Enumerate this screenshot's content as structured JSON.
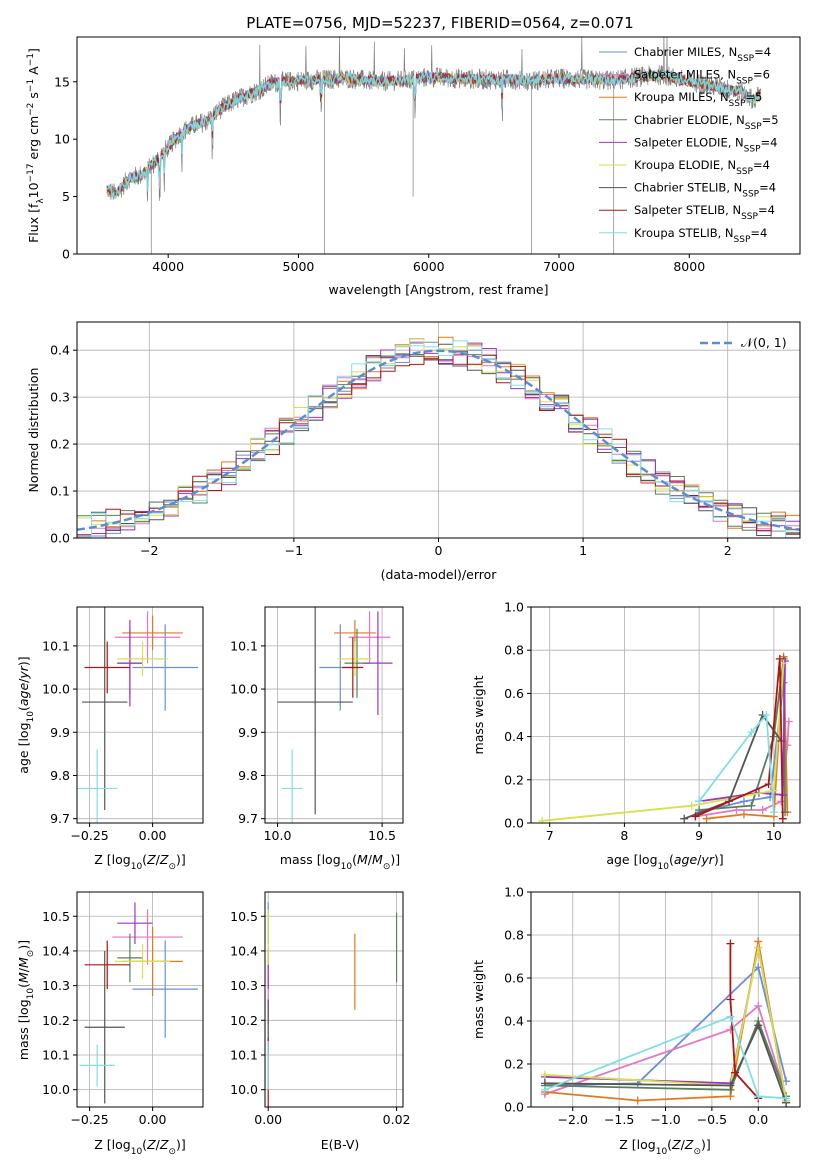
{
  "figure_title": "PLATE=0756, MJD=52237, FIBERID=0564, z=0.071",
  "palette": [
    "#6a8fd6",
    "#e377c2",
    "#e07b1d",
    "#5b7f5b",
    "#9e32c9",
    "#d8e04b",
    "#555555",
    "#b01515",
    "#80dfe3"
  ],
  "legend_spectrum": [
    {
      "base": "Chabrier MILES, N",
      "sub": "SSP",
      "tail": "=4",
      "color": "#6a8fd6"
    },
    {
      "base": "Salpeter MILES, N",
      "sub": "SSP",
      "tail": "=6",
      "color": "#e377c2"
    },
    {
      "base": "Kroupa MILES, N",
      "sub": "SSP",
      "tail": "=5",
      "color": "#e07b1d"
    },
    {
      "base": "Chabrier ELODIE, N",
      "sub": "SSP",
      "tail": "=5",
      "color": "#5b7f5b"
    },
    {
      "base": "Salpeter ELODIE, N",
      "sub": "SSP",
      "tail": "=4",
      "color": "#9e32c9"
    },
    {
      "base": "Kroupa ELODIE, N",
      "sub": "SSP",
      "tail": "=4",
      "color": "#d8e04b"
    },
    {
      "base": "Chabrier STELIB, N",
      "sub": "SSP",
      "tail": "=4",
      "color": "#555555"
    },
    {
      "base": "Salpeter STELIB, N",
      "sub": "SSP",
      "tail": "=4",
      "color": "#b01515"
    },
    {
      "base": "Kroupa STELIB, N",
      "sub": "SSP",
      "tail": "=4",
      "color": "#80dfe3"
    }
  ],
  "chart_data": [
    {
      "type": "line",
      "name": "spectrum",
      "xlabel": "wavelength [Angstrom, rest frame]",
      "ylabel": "Flux [f",
      "ylabel_parts": [
        "Flux [f",
        "λ",
        "10",
        "−17",
        " erg cm",
        "−2",
        " s",
        "−1",
        " A",
        "−1",
        "]"
      ],
      "xlim": [
        3300,
        8850
      ],
      "ylim": [
        0,
        18.9
      ],
      "xticks": [
        4000,
        5000,
        6000,
        7000,
        8000
      ],
      "yticks": [
        0,
        5,
        10,
        15
      ],
      "grid": false,
      "legend": "right",
      "envelope": {
        "x": [
          3530,
          3600,
          3700,
          3800,
          3900,
          4000,
          4100,
          4200,
          4300,
          4400,
          4500,
          4600,
          4700,
          4800,
          4900,
          5000,
          5200,
          5400,
          5600,
          5800,
          6000,
          6200,
          6400,
          6600,
          6800,
          7000,
          7200,
          7400,
          7600,
          7800,
          8000,
          8200,
          8400,
          8500,
          8550
        ],
        "y": [
          5.6,
          5.2,
          6.6,
          6.9,
          8.0,
          9.3,
          10.6,
          11.2,
          11.6,
          12.6,
          13.3,
          13.8,
          14.3,
          14.9,
          15.0,
          15.1,
          15.2,
          15.3,
          15.0,
          15.1,
          15.4,
          15.3,
          15.2,
          15.2,
          15.1,
          15.3,
          15.2,
          15.1,
          15.4,
          15.6,
          15.0,
          14.6,
          14.1,
          13.4,
          14.0
        ]
      },
      "absorption_lines": [
        3840,
        3935,
        3970,
        4105,
        4340,
        4861,
        5175,
        5895,
        6563
      ]
    },
    {
      "type": "bar",
      "name": "residual-histogram",
      "xlabel": "(data-model)/error",
      "ylabel": "Normed distribution",
      "xlim": [
        -2.5,
        2.5
      ],
      "ylim": [
        0,
        0.46
      ],
      "xticks": [
        -2,
        -1,
        0,
        1,
        2
      ],
      "yticks": [
        0.0,
        0.1,
        0.2,
        0.3,
        0.4
      ],
      "grid": true,
      "legend": "top-right",
      "legend_label": "N(0, 1)",
      "bin_width": 0.1,
      "reference_curve": "standard normal N(0,1)"
    },
    {
      "type": "scatter",
      "name": "age-vs-metallicity",
      "xlabel": "Z [log10(Z/Z⊙)]",
      "ylabel": "age [log10(age/yr)]",
      "xlim": [
        -0.3,
        0.2
      ],
      "ylim": [
        9.69,
        10.19
      ],
      "xticks": [
        -0.25,
        0.0
      ],
      "yticks": [
        9.7,
        9.8,
        9.9,
        10.0,
        10.1
      ],
      "grid": true,
      "points": [
        {
          "x": 0.05,
          "y": 10.05,
          "xerr": 0.13,
          "yerr": 0.1
        },
        {
          "x": -0.02,
          "y": 10.12,
          "xerr": 0.13,
          "yerr": 0.06
        },
        {
          "x": 0.0,
          "y": 10.13,
          "xerr": 0.12,
          "yerr": 0.04
        },
        {
          "x": -0.09,
          "y": 10.06,
          "xerr": 0.05,
          "yerr": 0.08
        },
        {
          "x": -0.09,
          "y": 10.06,
          "xerr": 0.05,
          "yerr": 0.1
        },
        {
          "x": -0.04,
          "y": 10.07,
          "xerr": 0.1,
          "yerr": 0.04
        },
        {
          "x": -0.19,
          "y": 9.97,
          "xerr": 0.09,
          "yerr": 0.25
        },
        {
          "x": -0.18,
          "y": 10.05,
          "xerr": 0.09,
          "yerr": 0.06
        },
        {
          "x": -0.22,
          "y": 9.77,
          "xerr": 0.08,
          "yerr": 0.09
        }
      ]
    },
    {
      "type": "scatter",
      "name": "age-vs-mass",
      "xlabel": "mass [log10(M/M⊙)]",
      "ylabel": "",
      "xlim": [
        9.94,
        10.6
      ],
      "ylim": [
        9.69,
        10.19
      ],
      "xticks": [
        10.0,
        10.5
      ],
      "yticks": [
        9.7,
        9.8,
        9.9,
        10.0,
        10.1
      ],
      "grid": true,
      "points": [
        {
          "x": 10.3,
          "y": 10.05,
          "xerr": 0.1,
          "yerr": 0.1
        },
        {
          "x": 10.44,
          "y": 10.12,
          "xerr": 0.1,
          "yerr": 0.06
        },
        {
          "x": 10.37,
          "y": 10.13,
          "xerr": 0.1,
          "yerr": 0.03
        },
        {
          "x": 10.38,
          "y": 10.06,
          "xerr": 0.06,
          "yerr": 0.08
        },
        {
          "x": 10.48,
          "y": 10.06,
          "xerr": 0.07,
          "yerr": 0.12
        },
        {
          "x": 10.37,
          "y": 10.07,
          "xerr": 0.08,
          "yerr": 0.04
        },
        {
          "x": 10.18,
          "y": 9.97,
          "xerr": 0.18,
          "yerr": 0.26
        },
        {
          "x": 10.36,
          "y": 10.05,
          "xerr": 0.05,
          "yerr": 0.07
        },
        {
          "x": 10.07,
          "y": 9.77,
          "xerr": 0.05,
          "yerr": 0.09
        }
      ]
    },
    {
      "type": "line",
      "name": "mass-weight-vs-age",
      "xlabel": "age [log10(age/yr)]",
      "ylabel": "mass weight",
      "xlim": [
        6.75,
        10.35
      ],
      "ylim": [
        0,
        1
      ],
      "xticks": [
        7,
        8,
        9,
        10
      ],
      "yticks": [
        0.0,
        0.2,
        0.4,
        0.6,
        0.8,
        1.0
      ],
      "grid": true,
      "series": [
        {
          "x": [
            9.0,
            9.6,
            9.95,
            10.13
          ],
          "y": [
            0.05,
            0.1,
            0.12,
            0.65
          ]
        },
        {
          "x": [
            8.95,
            9.5,
            9.85,
            10.1,
            10.18,
            10.2
          ],
          "y": [
            0.03,
            0.06,
            0.06,
            0.1,
            0.36,
            0.47
          ]
        },
        {
          "x": [
            9.1,
            9.6,
            10.0,
            10.13,
            10.18
          ],
          "y": [
            0.02,
            0.04,
            0.03,
            0.77,
            0.05
          ]
        },
        {
          "x": [
            9.0,
            9.7,
            10.0,
            10.13,
            10.15
          ],
          "y": [
            0.06,
            0.08,
            0.4,
            0.76,
            0.05
          ]
        },
        {
          "x": [
            9.0,
            9.8,
            10.12,
            10.15
          ],
          "y": [
            0.1,
            0.14,
            0.13,
            0.75
          ]
        },
        {
          "x": [
            6.9,
            8.9,
            10.0,
            10.13
          ],
          "y": [
            0.01,
            0.08,
            0.15,
            0.74
          ]
        },
        {
          "x": [
            8.8,
            9.4,
            9.85,
            10.1
          ],
          "y": [
            0.02,
            0.1,
            0.5,
            0.38
          ]
        },
        {
          "x": [
            8.95,
            9.93,
            10.08,
            10.12
          ],
          "y": [
            0.03,
            0.18,
            0.76,
            0.02
          ]
        },
        {
          "x": [
            9.0,
            9.7,
            9.9,
            10.0
          ],
          "y": [
            0.1,
            0.42,
            0.5,
            0.05
          ]
        }
      ]
    },
    {
      "type": "scatter",
      "name": "mass-vs-metallicity",
      "xlabel": "Z [log10(Z/Z⊙)]",
      "ylabel": "mass [log10(M/M⊙)]",
      "xlim": [
        -0.3,
        0.2
      ],
      "ylim": [
        9.95,
        10.57
      ],
      "xticks": [
        -0.25,
        0.0
      ],
      "yticks": [
        10.0,
        10.1,
        10.2,
        10.3,
        10.4,
        10.5
      ],
      "grid": true,
      "points": [
        {
          "x": 0.05,
          "y": 10.29,
          "xerr": 0.13,
          "yerr": 0.14
        },
        {
          "x": -0.02,
          "y": 10.44,
          "xerr": 0.14,
          "yerr": 0.08
        },
        {
          "x": 0.0,
          "y": 10.37,
          "xerr": 0.12,
          "yerr": 0.1
        },
        {
          "x": -0.09,
          "y": 10.38,
          "xerr": 0.05,
          "yerr": 0.07
        },
        {
          "x": -0.07,
          "y": 10.48,
          "xerr": 0.07,
          "yerr": 0.06
        },
        {
          "x": -0.04,
          "y": 10.37,
          "xerr": 0.11,
          "yerr": 0.05
        },
        {
          "x": -0.19,
          "y": 10.18,
          "xerr": 0.08,
          "yerr": 0.22
        },
        {
          "x": -0.18,
          "y": 10.36,
          "xerr": 0.09,
          "yerr": 0.07
        },
        {
          "x": -0.22,
          "y": 10.07,
          "xerr": 0.07,
          "yerr": 0.06
        }
      ]
    },
    {
      "type": "scatter",
      "name": "mass-vs-extinction",
      "xlabel": "E(B-V)",
      "ylabel": "",
      "xlim": [
        -0.0005,
        0.021
      ],
      "ylim": [
        9.95,
        10.57
      ],
      "xticks": [
        0.0,
        0.02
      ],
      "yticks": [
        10.0,
        10.1,
        10.2,
        10.3,
        10.4,
        10.5
      ],
      "grid": true,
      "points": [
        {
          "x": 0.0,
          "y": 10.48,
          "yerr": 0.06
        },
        {
          "x": 0.0,
          "y": 10.29,
          "yerr": 0.1
        },
        {
          "x": 0.0135,
          "y": 10.34,
          "yerr": 0.11
        },
        {
          "x": 0.02,
          "y": 10.41,
          "yerr": 0.1
        },
        {
          "x": 0.0,
          "y": 10.35,
          "yerr": 0.06
        },
        {
          "x": 0.0,
          "y": 10.44,
          "yerr": 0.08
        },
        {
          "x": 0.0,
          "y": 10.18,
          "yerr": 0.08
        },
        {
          "x": 0.0,
          "y": 10.05,
          "yerr": 0.1
        },
        {
          "x": 0.0,
          "y": 10.07,
          "yerr": 0.07
        }
      ]
    },
    {
      "type": "line",
      "name": "mass-weight-vs-metallicity",
      "xlabel": "Z [log10(Z/Z⊙)]",
      "ylabel": "mass weight",
      "xlim": [
        -2.45,
        0.45
      ],
      "ylim": [
        0,
        1
      ],
      "xticks": [
        -2.0,
        -1.5,
        -1.0,
        -0.5,
        0.0
      ],
      "yticks": [
        0.0,
        0.2,
        0.4,
        0.6,
        0.8,
        1.0
      ],
      "grid": true,
      "series": [
        {
          "x": [
            -2.3,
            -1.3,
            0.0,
            0.3
          ],
          "y": [
            0.1,
            0.11,
            0.65,
            0.12
          ]
        },
        {
          "x": [
            -2.3,
            -0.3,
            0.0,
            0.3
          ],
          "y": [
            0.06,
            0.36,
            0.47,
            0.05
          ]
        },
        {
          "x": [
            -2.3,
            -1.3,
            -0.3,
            0.0,
            0.3
          ],
          "y": [
            0.07,
            0.03,
            0.05,
            0.77,
            0.02
          ]
        },
        {
          "x": [
            -2.3,
            -0.3,
            0.0,
            0.3
          ],
          "y": [
            0.1,
            0.08,
            0.4,
            0.05
          ]
        },
        {
          "x": [
            -2.3,
            -0.3,
            0.0,
            0.3
          ],
          "y": [
            0.14,
            0.11,
            0.74,
            0.03
          ]
        },
        {
          "x": [
            -2.3,
            -0.3,
            0.0,
            0.3
          ],
          "y": [
            0.15,
            0.1,
            0.74,
            0.03
          ]
        },
        {
          "x": [
            -2.3,
            -0.3,
            0.0,
            0.3
          ],
          "y": [
            0.11,
            0.1,
            0.38,
            0.02
          ]
        },
        {
          "x": [
            -0.3,
            -0.3,
            -0.25,
            0.0
          ],
          "y": [
            0.76,
            0.5,
            0.16,
            0.04
          ]
        },
        {
          "x": [
            -2.3,
            -0.3,
            0.0,
            0.3
          ],
          "y": [
            0.08,
            0.42,
            0.05,
            0.04
          ]
        }
      ]
    }
  ]
}
